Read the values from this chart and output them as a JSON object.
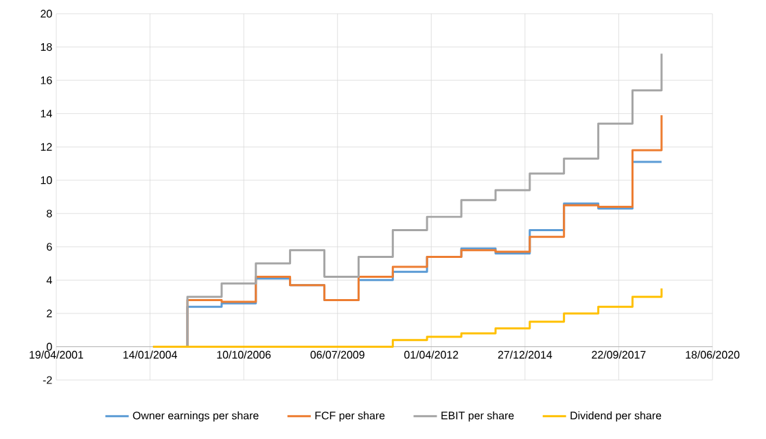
{
  "chart_data": {
    "type": "step",
    "x": [
      "2004-02-15",
      "2005-02-16",
      "2006-02-16",
      "2007-02-16",
      "2008-02-16",
      "2009-02-16",
      "2010-02-16",
      "2011-02-16",
      "2012-02-16",
      "2013-02-16",
      "2014-02-16",
      "2015-02-16",
      "2016-02-16",
      "2017-02-16",
      "2018-02-16",
      "2018-12-23"
    ],
    "series": [
      {
        "name": "Owner earnings per share",
        "color": "#5b9bd5",
        "values": [
          0,
          2.4,
          2.6,
          4.1,
          3.7,
          2.8,
          4.0,
          4.5,
          5.4,
          5.9,
          5.6,
          7.0,
          8.6,
          8.3,
          11.1,
          11.1
        ]
      },
      {
        "name": "FCF per share",
        "color": "#ed7d31",
        "values": [
          0,
          2.8,
          2.7,
          4.2,
          3.7,
          2.8,
          4.2,
          4.8,
          5.4,
          5.8,
          5.7,
          6.6,
          8.5,
          8.4,
          11.8,
          13.9
        ]
      },
      {
        "name": "EBIT per share",
        "color": "#a5a5a5",
        "values": [
          0,
          3.0,
          3.8,
          5.0,
          5.8,
          4.2,
          5.4,
          7.0,
          7.8,
          8.8,
          9.4,
          10.4,
          11.3,
          13.4,
          15.4,
          17.6
        ]
      },
      {
        "name": "Dividend per share",
        "color": "#ffc000",
        "values": [
          0,
          0,
          0,
          0,
          0,
          0,
          0,
          0.4,
          0.6,
          0.8,
          1.1,
          1.5,
          2.0,
          2.4,
          3.0,
          3.5
        ]
      }
    ],
    "xlim": [
      "2001-04-19",
      "2020-06-18"
    ],
    "xticks": [
      {
        "value": "2001-04-19",
        "label": "19/04/2001"
      },
      {
        "value": "2004-01-14",
        "label": "14/01/2004"
      },
      {
        "value": "2006-10-10",
        "label": "10/10/2006"
      },
      {
        "value": "2009-07-06",
        "label": "06/07/2009"
      },
      {
        "value": "2012-04-01",
        "label": "01/04/2012"
      },
      {
        "value": "2014-12-27",
        "label": "27/12/2014"
      },
      {
        "value": "2017-09-22",
        "label": "22/09/2017"
      },
      {
        "value": "2020-06-18",
        "label": "18/06/2020"
      }
    ],
    "ylim": [
      -2,
      20
    ],
    "yticks": [
      -2,
      0,
      2,
      4,
      6,
      8,
      10,
      12,
      14,
      16,
      18,
      20
    ],
    "grid": true,
    "legend": "bottom",
    "marker": "none",
    "line_style": "solid"
  }
}
